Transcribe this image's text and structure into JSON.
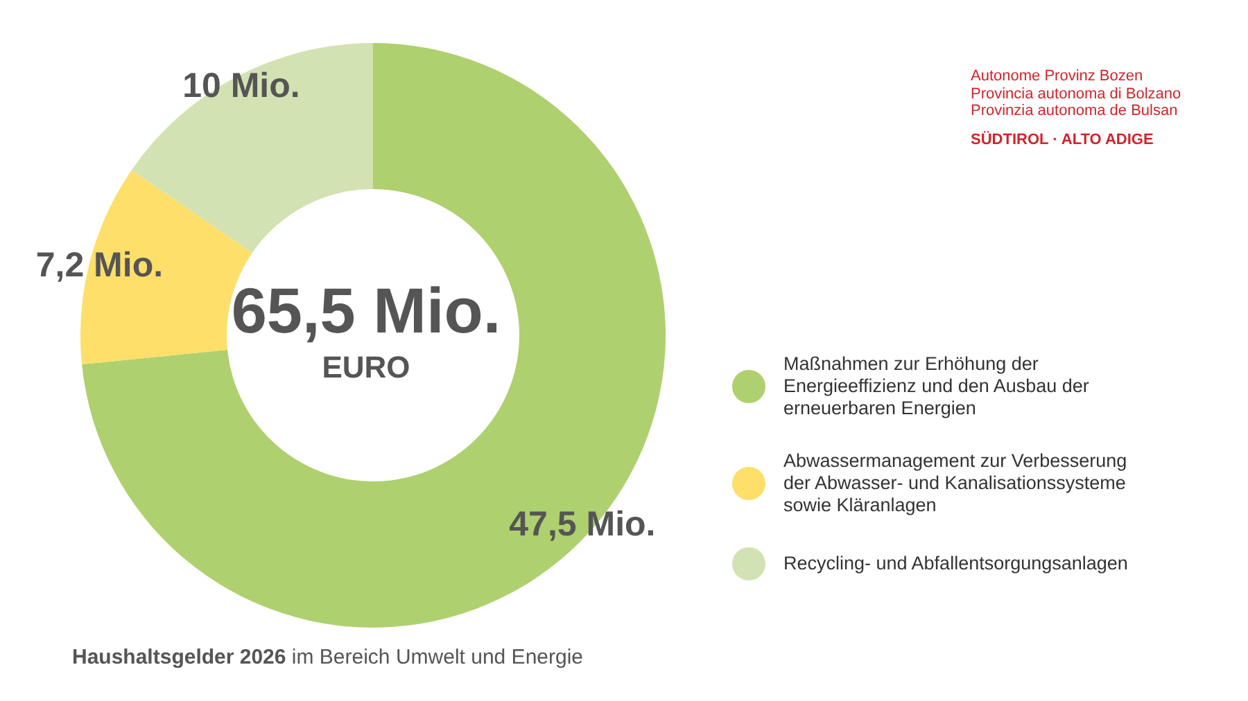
{
  "chart_data": {
    "type": "donut",
    "title": "Haushaltsgelder 2026",
    "subtitle": "im Bereich Umwelt und Energie",
    "categories": [
      "Maßnahmen zur Erhöhung der Energieeffizienz und den Ausbau der erneuerbaren Energien",
      "Abwassermanagement zur Verbesserung der Abwasser- und Kanalisationssysteme sowie Kläranlagen",
      "Recycling- und Abfallentsorgungsanlagen"
    ],
    "values": [
      47.5,
      7.2,
      10
    ],
    "colors": [
      "#afd06e",
      "#fddf6a",
      "#d3e2b3"
    ],
    "value_labels": [
      "47,5 Mio.",
      "7,2 Mio.",
      "10 Mio."
    ],
    "annotations": [
      "65,5 Mio.",
      "EURO",
      "Autonome Provinz Bozen",
      "Provincia autonoma di Bolzano",
      "Provinzia autonoma de Bulsan",
      "SÜDTIROL · ALTO ADIGE"
    ],
    "legend": "right"
  }
}
